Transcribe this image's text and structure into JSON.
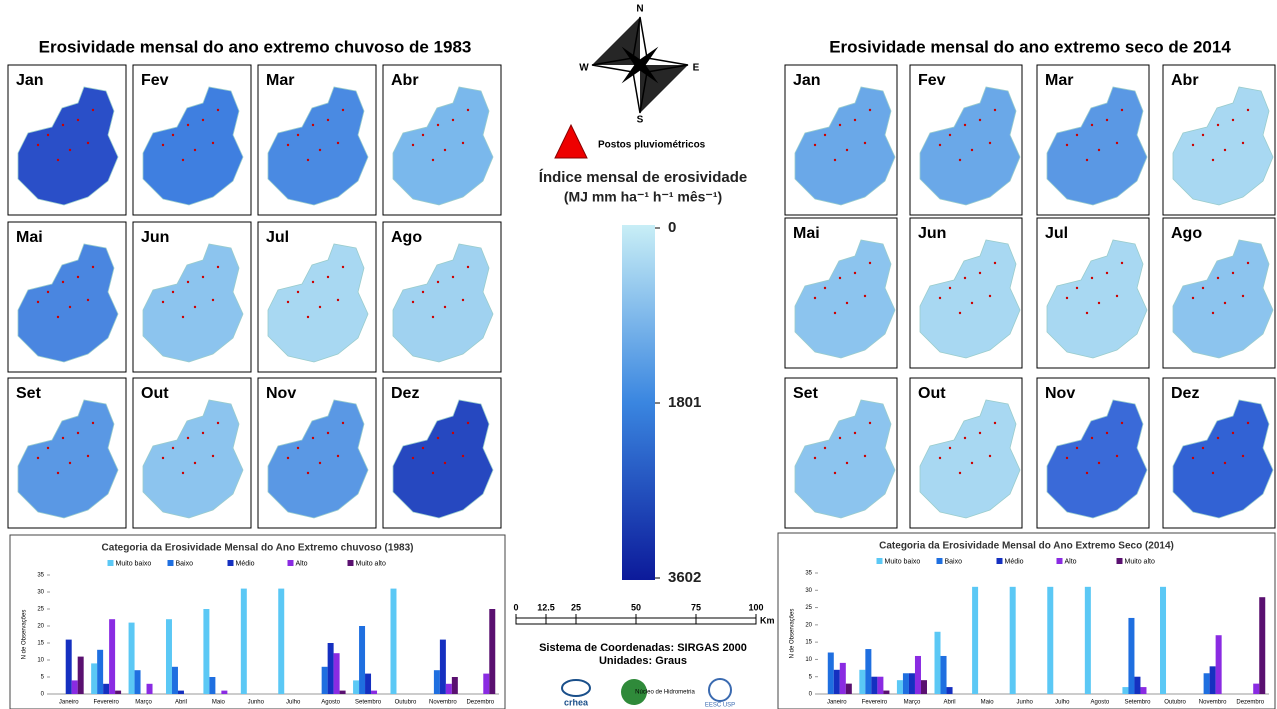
{
  "left_panel": {
    "title": "Erosividade mensal do ano extremo chuvoso de 1983",
    "months": [
      "Jan",
      "Fev",
      "Mar",
      "Abr",
      "Mai",
      "Jun",
      "Jul",
      "Ago",
      "Set",
      "Out",
      "Nov",
      "Dez"
    ]
  },
  "right_panel": {
    "title": "Erosividade mensal do ano extremo seco de 2014",
    "months": [
      "Jan",
      "Fev",
      "Mar",
      "Abr",
      "Mai",
      "Jun",
      "Jul",
      "Ago",
      "Set",
      "Out",
      "Nov",
      "Dez"
    ]
  },
  "compass": [
    "N",
    "E",
    "S",
    "W"
  ],
  "legend": {
    "stations": "Postos pluviométricos",
    "index_title": "Índice mensal de erosividade",
    "units": "(MJ mm ha⁻¹ h⁻¹ mês⁻¹)",
    "scale": [
      0,
      1801,
      3602
    ]
  },
  "scalebar": {
    "ticks": [
      0,
      12.5,
      25,
      50,
      75,
      100
    ],
    "unit": "Km"
  },
  "crs": "Sistema de Coordenadas: SIRGAS 2000",
  "units_note": "Unidades: Graus",
  "logos": [
    "crhea",
    "Núcleo de Hidrometria",
    "EESC USP"
  ],
  "chart_data": [
    {
      "type": "bar",
      "title": "Categoria da Erosividade Mensal do Ano Extremo chuvoso (1983)",
      "y_label": "N de Observações",
      "categories": [
        "Janeiro",
        "Fevereiro",
        "Março",
        "Abril",
        "Maio",
        "Junho",
        "Julho",
        "Agosto",
        "Setembro",
        "Outubro",
        "Novembro",
        "Dezembro"
      ],
      "ylim": [
        0,
        35
      ],
      "yticks": [
        0,
        5,
        10,
        15,
        20,
        25,
        30,
        35
      ],
      "series": [
        {
          "name": "Muito baixo",
          "color": "#5bc8f5",
          "values": [
            0,
            9,
            21,
            22,
            25,
            31,
            31,
            0,
            4,
            31,
            0,
            0
          ]
        },
        {
          "name": "Baixo",
          "color": "#1f6fe0",
          "values": [
            0,
            13,
            7,
            8,
            5,
            0,
            0,
            8,
            20,
            0,
            7,
            0
          ]
        },
        {
          "name": "Médio",
          "color": "#1530c0",
          "values": [
            16,
            3,
            0,
            1,
            0,
            0,
            0,
            15,
            6,
            0,
            16,
            0
          ]
        },
        {
          "name": "Alto",
          "color": "#8a2be2",
          "values": [
            4,
            22,
            3,
            0,
            1,
            0,
            0,
            12,
            1,
            0,
            3,
            6
          ]
        },
        {
          "name": "Muito alto",
          "color": "#5a1070",
          "values": [
            11,
            1,
            0,
            0,
            0,
            0,
            0,
            1,
            0,
            0,
            5,
            25
          ]
        }
      ]
    },
    {
      "type": "bar",
      "title": "Categoria da Erosividade Mensal do Ano Extremo Seco (2014)",
      "y_label": "N de Observações",
      "categories": [
        "Janeiro",
        "Fevereiro",
        "Março",
        "Abril",
        "Maio",
        "Junho",
        "Julho",
        "Agosto",
        "Setembro",
        "Outubro",
        "Novembro",
        "Dezembro"
      ],
      "ylim": [
        0,
        35
      ],
      "yticks": [
        0,
        5,
        10,
        15,
        20,
        25,
        30,
        35
      ],
      "series": [
        {
          "name": "Muito baixo",
          "color": "#5bc8f5",
          "values": [
            0,
            7,
            4,
            18,
            31,
            31,
            31,
            31,
            2,
            31,
            0,
            0
          ]
        },
        {
          "name": "Baixo",
          "color": "#1f6fe0",
          "values": [
            12,
            13,
            6,
            11,
            0,
            0,
            0,
            0,
            22,
            0,
            6,
            0
          ]
        },
        {
          "name": "Médio",
          "color": "#1530c0",
          "values": [
            7,
            5,
            6,
            2,
            0,
            0,
            0,
            0,
            5,
            0,
            8,
            0
          ]
        },
        {
          "name": "Alto",
          "color": "#8a2be2",
          "values": [
            9,
            5,
            11,
            0,
            0,
            0,
            0,
            0,
            2,
            0,
            17,
            3
          ]
        },
        {
          "name": "Muito alto",
          "color": "#5a1070",
          "values": [
            3,
            1,
            4,
            0,
            0,
            0,
            0,
            0,
            0,
            0,
            0,
            28
          ]
        }
      ]
    }
  ]
}
